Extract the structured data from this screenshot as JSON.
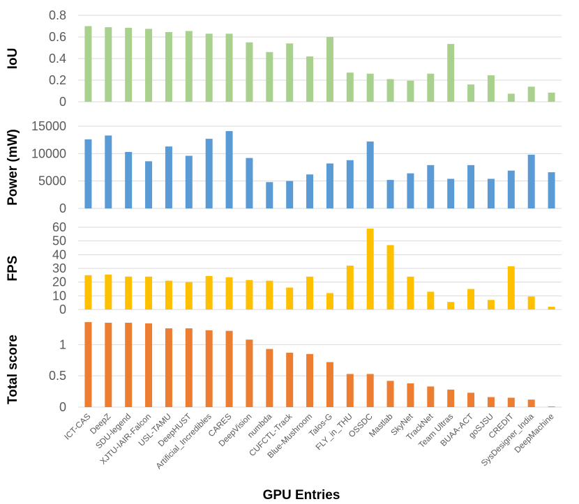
{
  "chart_data": {
    "type": "bar",
    "xlabel": "GPU Entries",
    "categories": [
      "ICT-CAS",
      "DeepZ",
      "SDU-legend",
      "XJTU-IAIR-Falcon",
      "USL-TAMU",
      "DeepHUST",
      "Artificial_Incredibles",
      "CARES",
      "DeepVision",
      "numbda",
      "CUFCTL-Track",
      "Blue-Mushroom",
      "Talos-G",
      "FLY_in_THU",
      "OSSDC",
      "Mastlab",
      "SkyNet",
      "TrackNet",
      "Team Ultras",
      "BUAA-ACT",
      "goSJSU",
      "CREDIT",
      "SysDesigner_India",
      "DeepMachine"
    ],
    "panels": [
      {
        "ylabel": "IoU",
        "color": "#a9d18e",
        "ylim": [
          0,
          0.8
        ],
        "ticks": [
          "0",
          "0.2",
          "0.4",
          "0.6",
          "0.8"
        ],
        "tick_values": [
          0,
          0.2,
          0.4,
          0.6,
          0.8
        ],
        "values": [
          0.7,
          0.69,
          0.685,
          0.675,
          0.645,
          0.655,
          0.63,
          0.63,
          0.55,
          0.46,
          0.54,
          0.42,
          0.6,
          0.27,
          0.26,
          0.21,
          0.195,
          0.26,
          0.535,
          0.16,
          0.245,
          0.075,
          0.14,
          0.085
        ]
      },
      {
        "ylabel": "Power (mW)",
        "color": "#5b9bd5",
        "ylim": [
          0,
          15000
        ],
        "ticks": [
          "0",
          "5000",
          "10000",
          "15000"
        ],
        "tick_values": [
          0,
          5000,
          10000,
          15000
        ],
        "values": [
          12600,
          13300,
          10300,
          8600,
          11300,
          9600,
          12700,
          14100,
          9200,
          4800,
          5000,
          6200,
          8200,
          8800,
          12200,
          5200,
          6400,
          7900,
          5400,
          7900,
          5400,
          6900,
          9800,
          6600
        ]
      },
      {
        "ylabel": "FPS",
        "color": "#ffc000",
        "ylim": [
          0,
          60
        ],
        "ticks": [
          "0",
          "10",
          "20",
          "30",
          "40",
          "50",
          "60"
        ],
        "tick_values": [
          0,
          10,
          20,
          30,
          40,
          50,
          60
        ],
        "values": [
          25,
          25.5,
          24,
          24,
          21,
          20,
          24.5,
          23.5,
          21.5,
          21,
          16,
          24,
          12,
          32,
          59,
          47,
          24,
          13,
          5.5,
          15,
          7,
          31.5,
          9.5,
          2
        ]
      },
      {
        "ylabel": "Total score",
        "color": "#ed7d31",
        "ylim": [
          0,
          1.45
        ],
        "ticks": [
          "0",
          "0.5",
          "1"
        ],
        "tick_values": [
          0,
          0.5,
          1
        ],
        "values": [
          1.36,
          1.35,
          1.35,
          1.34,
          1.26,
          1.26,
          1.23,
          1.22,
          1.08,
          0.93,
          0.87,
          0.85,
          0.72,
          0.53,
          0.53,
          0.42,
          0.38,
          0.33,
          0.28,
          0.23,
          0.16,
          0.15,
          0.12,
          0.01
        ]
      }
    ]
  }
}
